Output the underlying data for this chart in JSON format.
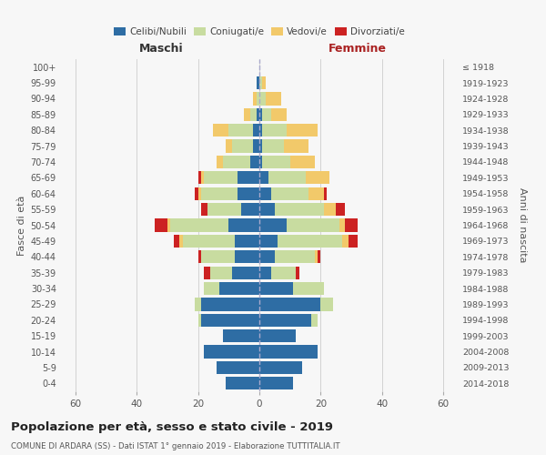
{
  "age_groups": [
    "0-4",
    "5-9",
    "10-14",
    "15-19",
    "20-24",
    "25-29",
    "30-34",
    "35-39",
    "40-44",
    "45-49",
    "50-54",
    "55-59",
    "60-64",
    "65-69",
    "70-74",
    "75-79",
    "80-84",
    "85-89",
    "90-94",
    "95-99",
    "100+"
  ],
  "birth_years": [
    "2014-2018",
    "2009-2013",
    "2004-2008",
    "1999-2003",
    "1994-1998",
    "1989-1993",
    "1984-1988",
    "1979-1983",
    "1974-1978",
    "1969-1973",
    "1964-1968",
    "1959-1963",
    "1954-1958",
    "1949-1953",
    "1944-1948",
    "1939-1943",
    "1934-1938",
    "1929-1933",
    "1924-1928",
    "1919-1923",
    "≤ 1918"
  ],
  "maschi": {
    "celibi": [
      11,
      14,
      18,
      12,
      19,
      19,
      13,
      9,
      8,
      8,
      10,
      6,
      7,
      7,
      3,
      2,
      2,
      1,
      0,
      1,
      0
    ],
    "coniugati": [
      0,
      0,
      0,
      0,
      1,
      2,
      5,
      7,
      11,
      17,
      19,
      11,
      12,
      11,
      9,
      7,
      8,
      2,
      1,
      0,
      0
    ],
    "vedovi": [
      0,
      0,
      0,
      0,
      0,
      0,
      0,
      0,
      0,
      1,
      1,
      0,
      1,
      1,
      2,
      2,
      5,
      2,
      1,
      0,
      0
    ],
    "divorziati": [
      0,
      0,
      0,
      0,
      0,
      0,
      0,
      2,
      1,
      2,
      4,
      2,
      1,
      1,
      0,
      0,
      0,
      0,
      0,
      0,
      0
    ]
  },
  "femmine": {
    "nubili": [
      11,
      14,
      19,
      12,
      17,
      20,
      11,
      4,
      5,
      6,
      9,
      5,
      4,
      3,
      1,
      1,
      1,
      1,
      0,
      0,
      0
    ],
    "coniugate": [
      0,
      0,
      0,
      0,
      2,
      4,
      10,
      8,
      13,
      21,
      17,
      16,
      12,
      12,
      9,
      7,
      8,
      3,
      2,
      1,
      0
    ],
    "vedove": [
      0,
      0,
      0,
      0,
      0,
      0,
      0,
      0,
      1,
      2,
      2,
      4,
      5,
      8,
      8,
      8,
      10,
      5,
      5,
      1,
      0
    ],
    "divorziate": [
      0,
      0,
      0,
      0,
      0,
      0,
      0,
      1,
      1,
      3,
      4,
      3,
      1,
      0,
      0,
      0,
      0,
      0,
      0,
      0,
      0
    ]
  },
  "colors": {
    "celibi_nubili": "#2e6da4",
    "coniugati": "#c8dca0",
    "vedovi": "#f2c96a",
    "divorziati": "#cc2222"
  },
  "xlim": 65,
  "title": "Popolazione per età, sesso e stato civile - 2019",
  "subtitle": "COMUNE DI ARDARA (SS) - Dati ISTAT 1° gennaio 2019 - Elaborazione TUTTITALIA.IT",
  "ylabel_left": "Fasce di età",
  "ylabel_right": "Anni di nascita",
  "xlabel_left": "Maschi",
  "xlabel_right": "Femmine",
  "background_color": "#f7f7f7"
}
